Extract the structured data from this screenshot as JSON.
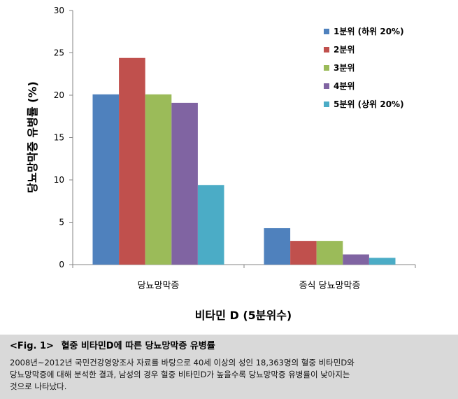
{
  "chart_data": {
    "type": "bar",
    "categories": [
      "당뇨망막증",
      "증식 당뇨망막증"
    ],
    "series": [
      {
        "name": "1분위 (하위 20%)",
        "values": [
          20.1,
          4.3
        ],
        "color": "#4f81bd"
      },
      {
        "name": "2분위",
        "values": [
          24.4,
          2.8
        ],
        "color": "#c0504d"
      },
      {
        "name": "3분위",
        "values": [
          20.1,
          2.8
        ],
        "color": "#9bbb59"
      },
      {
        "name": "4분위",
        "values": [
          19.1,
          1.2
        ],
        "color": "#8064a2"
      },
      {
        "name": "5분위 (상위 20%)",
        "values": [
          9.4,
          0.8
        ],
        "color": "#4bacc6"
      }
    ],
    "yticks": [
      0,
      5,
      10,
      15,
      20,
      25,
      30
    ],
    "ylim": [
      0,
      30
    ],
    "xlabel": "비타민 D (5분위수)",
    "ylabel": "당뇨망막증 유병률 (%)",
    "legend_position": "top-right",
    "grid": false
  },
  "caption": {
    "fig_label": "<Fig. 1>",
    "title": "혈중 비타민D에 따른 당뇨망막증 유병률",
    "lines": [
      "2008년~2012년 국민건강영양조사 자료를 바탕으로 40세 이상의 성인 18,363명의 혈중 비타민D와",
      "당뇨망막증에 대해 분석한 결과, 남성의 경우 혈중 비타민D가 높을수록 당뇨망막증 유병률이 낮아지는",
      "것으로 나타났다."
    ]
  }
}
